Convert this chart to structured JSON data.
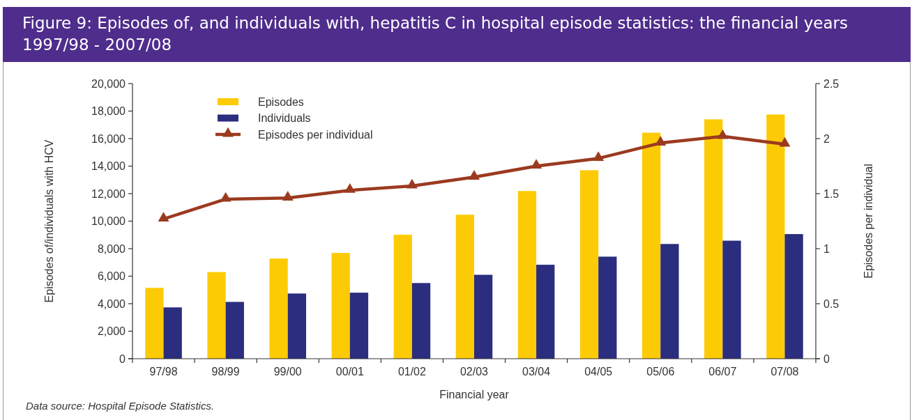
{
  "chart_data": {
    "type": "bar",
    "title": "Figure 9: Episodes of, and individuals with, hepatitis C in hospital episode statistics: the financial years 1997/98 - 2007/08",
    "xlabel": "Financial year",
    "ylabel": "Episodes of/individuals with HCV",
    "y2label": "Episodes per individual",
    "annotations": [
      "Data source: Hospital Episode Statistics."
    ],
    "categories": [
      "97/98",
      "98/99",
      "99/00",
      "00/01",
      "01/02",
      "02/03",
      "03/04",
      "04/05",
      "05/06",
      "06/07",
      "07/08"
    ],
    "series": [
      {
        "name": "Episodes",
        "color": "#fdcb05",
        "values": [
          5150,
          6300,
          7280,
          7690,
          9010,
          10470,
          12190,
          13700,
          16430,
          17400,
          17750
        ]
      },
      {
        "name": "Individuals",
        "color": "#2b2d7e",
        "values": [
          3730,
          4130,
          4740,
          4800,
          5500,
          6100,
          6830,
          7420,
          8340,
          8580,
          9060
        ]
      },
      {
        "name": "Episodes per individual",
        "type": "line",
        "axis": "y2",
        "color": "#9b3a1f",
        "values": [
          1.27,
          1.45,
          1.46,
          1.53,
          1.57,
          1.65,
          1.75,
          1.82,
          1.96,
          2.02,
          1.95
        ]
      }
    ],
    "ylim": [
      0,
      20000
    ],
    "yticks": [
      0,
      {
        "value": 2000,
        "label": "2,000"
      },
      {
        "value": 4000,
        "label": "4,000"
      },
      {
        "value": 6000,
        "label": "6,000"
      },
      {
        "value": 8000,
        "label": "8,000"
      },
      {
        "value": 10000,
        "label": "10,000"
      },
      {
        "value": 12000,
        "label": "12,000"
      },
      {
        "value": 14000,
        "label": "14,000"
      },
      {
        "value": 16000,
        "label": "16,000"
      },
      {
        "value": 18000,
        "label": "18,000"
      },
      {
        "value": 20000,
        "label": "20,000"
      }
    ],
    "y2lim": [
      0,
      2.5
    ],
    "y2ticks": [
      0,
      0.5,
      1,
      1.5,
      2,
      2.5
    ],
    "legend": "top left",
    "marker": "triangle"
  }
}
